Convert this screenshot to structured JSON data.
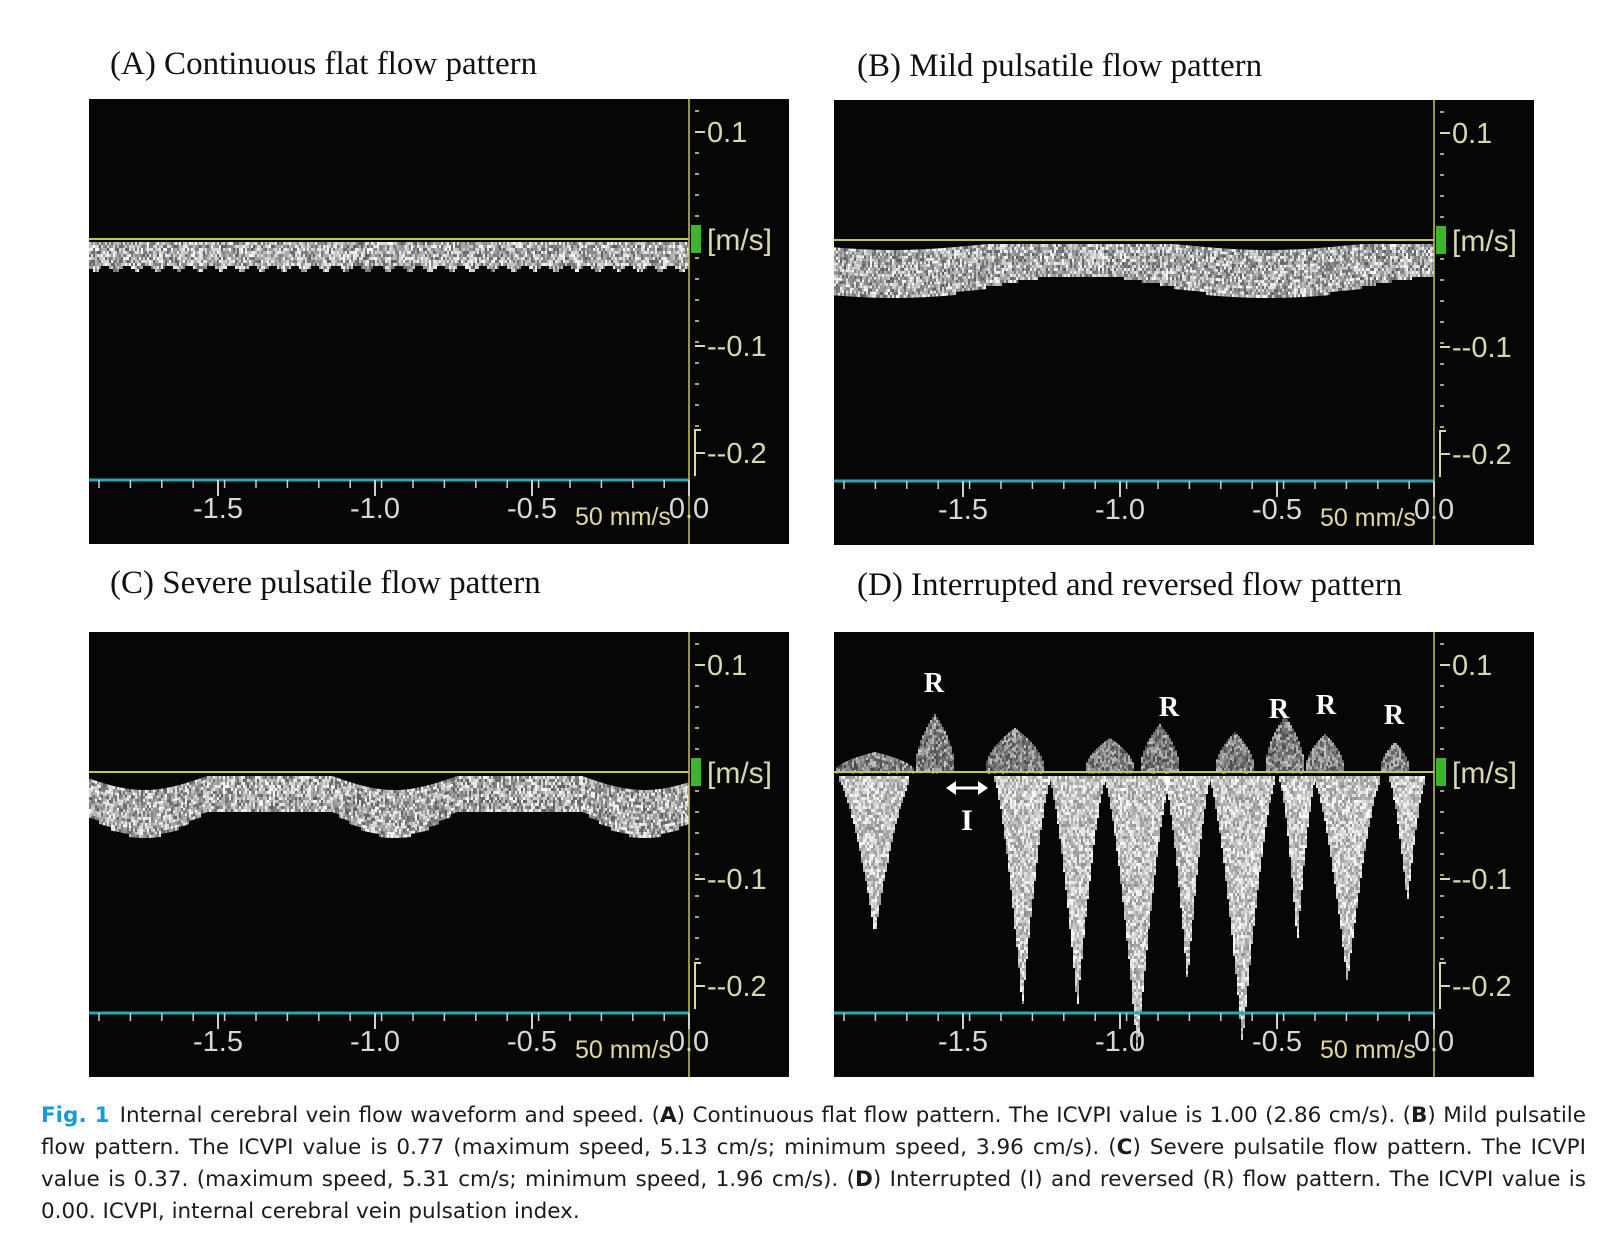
{
  "panels": [
    {
      "id": "A",
      "title": "(A) Continuous flat flow pattern",
      "pattern": "flat",
      "y_axis": {
        "unit": "[m/s]",
        "ticks": [
          "0.1",
          "-0.1",
          "-0.2"
        ]
      },
      "x_axis": {
        "ticks": [
          "-1.5",
          "-1.0",
          "-0.5",
          "0.0"
        ],
        "sweep_label": "50 mm/s"
      },
      "annotations": []
    },
    {
      "id": "B",
      "title": "(B) Mild pulsatile flow pattern",
      "pattern": "mild",
      "y_axis": {
        "unit": "[m/s]",
        "ticks": [
          "0.1",
          "-0.1",
          "-0.2"
        ]
      },
      "x_axis": {
        "ticks": [
          "-1.5",
          "-1.0",
          "-0.5",
          "0.0"
        ],
        "sweep_label": "50 mm/s"
      },
      "annotations": []
    },
    {
      "id": "C",
      "title": "(C) Severe pulsatile flow pattern",
      "pattern": "severe",
      "y_axis": {
        "unit": "[m/s]",
        "ticks": [
          "0.1",
          "-0.1",
          "-0.2"
        ]
      },
      "x_axis": {
        "ticks": [
          "-1.5",
          "-1.0",
          "-0.5",
          "0.0"
        ],
        "sweep_label": "50 mm/s"
      },
      "annotations": []
    },
    {
      "id": "D",
      "title": "(D) Interrupted and reversed flow pattern",
      "pattern": "interrupted",
      "y_axis": {
        "unit": "[m/s]",
        "ticks": [
          "0.1",
          "-0.1",
          "-0.2"
        ]
      },
      "x_axis": {
        "ticks": [
          "-1.5",
          "-1.0",
          "-0.5",
          "0.0"
        ],
        "sweep_label": "50 mm/s"
      },
      "annotations": [
        "R",
        "R",
        "R",
        "R",
        "R",
        "I"
      ]
    }
  ],
  "colors": {
    "axis_line": "#c8c45a",
    "baseline": "#2aa7b5",
    "scale_text": "#d8d8b0",
    "unit_marker": "#3fb52e",
    "caption_label": "#1a9ad6"
  },
  "caption": {
    "label": "Fig. 1",
    "parts": [
      "Internal cerebral vein flow waveform and speed. (",
      {
        "bold": "A"
      },
      ") Continuous flat flow pattern. The ICVPI value is 1.00 (2.86 cm/s). (",
      {
        "bold": "B"
      },
      ") Mild pulsatile flow pattern. The ICVPI value is 0.77 (maximum speed, 5.13 cm/s; minimum speed, 3.96 cm/s). (",
      {
        "bold": "C"
      },
      ") Severe pulsatile flow pattern. The ICVPI value is 0.37. (maximum speed, 5.31 cm/s; minimum speed, 1.96 cm/s). (",
      {
        "bold": "D"
      },
      ") Interrupted (I) and reversed (R) flow pattern. The ICVPI value is 0.00. ICVPI, internal cerebral vein pulsation index."
    ]
  }
}
